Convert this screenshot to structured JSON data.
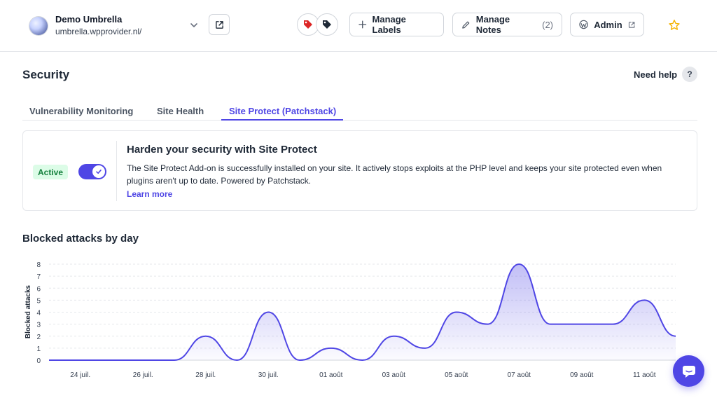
{
  "site": {
    "name": "Demo Umbrella",
    "url": "umbrella.wpprovider.nl/"
  },
  "header": {
    "manage_labels": "Manage Labels",
    "manage_notes": "Manage Notes",
    "notes_count": "(2)",
    "admin": "Admin"
  },
  "page": {
    "title": "Security",
    "need_help": "Need help",
    "help_icon": "?"
  },
  "tabs": [
    {
      "label": "Vulnerability Monitoring",
      "active": false
    },
    {
      "label": "Site Health",
      "active": false
    },
    {
      "label": "Site Protect (Patchstack)",
      "active": true
    }
  ],
  "protect": {
    "status": "Active",
    "toggle_on": true,
    "title": "Harden your security with Site Protect",
    "description": "The Site Protect Add-on is successfully installed on your site. It actively stops exploits at the PHP level and keeps your site protected even when plugins aren't up to date. Powered by Patchstack.",
    "learn_more": "Learn more"
  },
  "colors": {
    "accent": "#4f46e5",
    "active_badge_bg": "#dcfce7",
    "active_badge_text": "#15803d",
    "tag_red": "#dc2626",
    "tag_dark": "#1f2937",
    "star": "#f5b301"
  },
  "icons": {
    "site_logo": "globe-icon",
    "chevron": "chevron-down-icon",
    "external": "external-link-icon",
    "tag_red": "tag-icon",
    "tag_dark": "tag-icon",
    "plus": "plus-icon",
    "pencil": "pencil-icon",
    "wordpress": "wordpress-icon",
    "star": "star-icon",
    "check": "check-icon",
    "chat": "chat-icon"
  },
  "chart_section_title": "Blocked attacks by day",
  "chart_data": {
    "type": "area",
    "title": "Blocked attacks by day",
    "xlabel": "",
    "ylabel": "Blocked attacks",
    "ylim": [
      0,
      8
    ],
    "yticks": [
      0,
      1,
      2,
      3,
      4,
      5,
      6,
      7,
      8
    ],
    "grid": true,
    "x": [
      "23 juil.",
      "24 juil.",
      "25 juil.",
      "26 juil.",
      "27 juil.",
      "28 juil.",
      "29 juil.",
      "30 juil.",
      "31 juil.",
      "01 août",
      "02 août",
      "03 août",
      "04 août",
      "05 août",
      "06 août",
      "07 août",
      "08 août",
      "09 août",
      "10 août",
      "11 août",
      "12 août"
    ],
    "xtick_labels": [
      "24 juil.",
      "26 juil.",
      "28 juil.",
      "30 juil.",
      "01 août",
      "03 août",
      "05 août",
      "07 août",
      "09 août",
      "11 août"
    ],
    "series": [
      {
        "values": [
          0,
          0,
          0,
          0,
          0,
          2,
          0,
          4,
          0,
          1,
          0,
          2,
          1,
          4,
          3,
          8,
          3,
          3,
          3,
          5,
          2
        ],
        "color": "#4f46e5"
      }
    ]
  }
}
